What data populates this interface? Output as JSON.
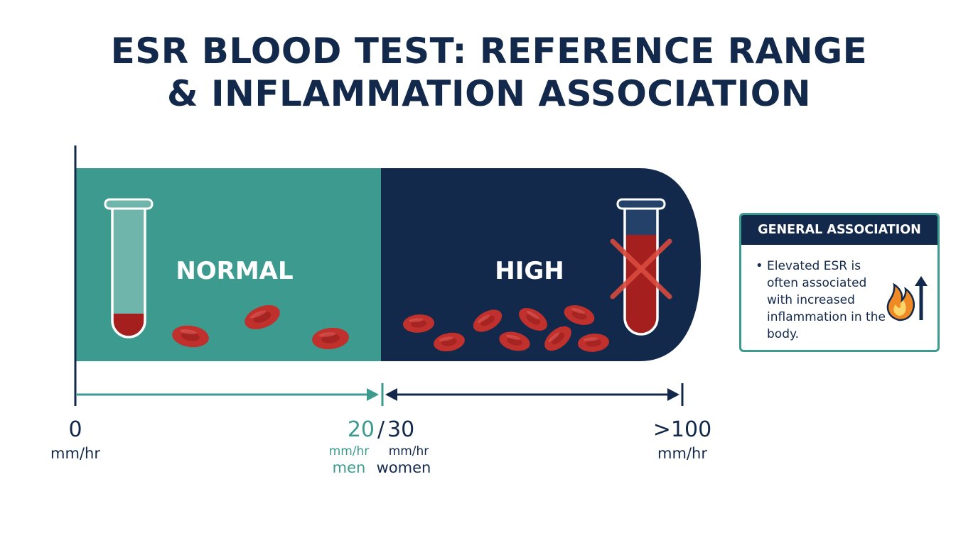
{
  "title": {
    "line1": "ESR BLOOD TEST: REFERENCE RANGE",
    "line2": "& INFLAMMATION ASSOCIATION"
  },
  "zones": {
    "normal": {
      "label": "NORMAL",
      "color": "#3c9a8f"
    },
    "high": {
      "label": "HIGH",
      "color": "#13294b"
    }
  },
  "axis": {
    "start": {
      "value": "0",
      "unit": "mm/hr"
    },
    "threshold": {
      "value_men": "20",
      "separator": "/",
      "value_women": "30",
      "unit_men": "mm/hr",
      "unit_women": "mm/hr",
      "label_men": "men",
      "label_women": "women"
    },
    "end": {
      "value": ">100",
      "unit": "mm/hr"
    }
  },
  "info_card": {
    "header": "GENERAL ASSOCIATION",
    "bullet": "•",
    "text": "Elevated ESR is often associated with increased inflammation in the body.",
    "icon": "flame-up-arrow-icon"
  },
  "colors": {
    "navy": "#13294b",
    "teal": "#3c9a8f",
    "blood": "#c0302c",
    "accent_orange": "#f08a24"
  }
}
